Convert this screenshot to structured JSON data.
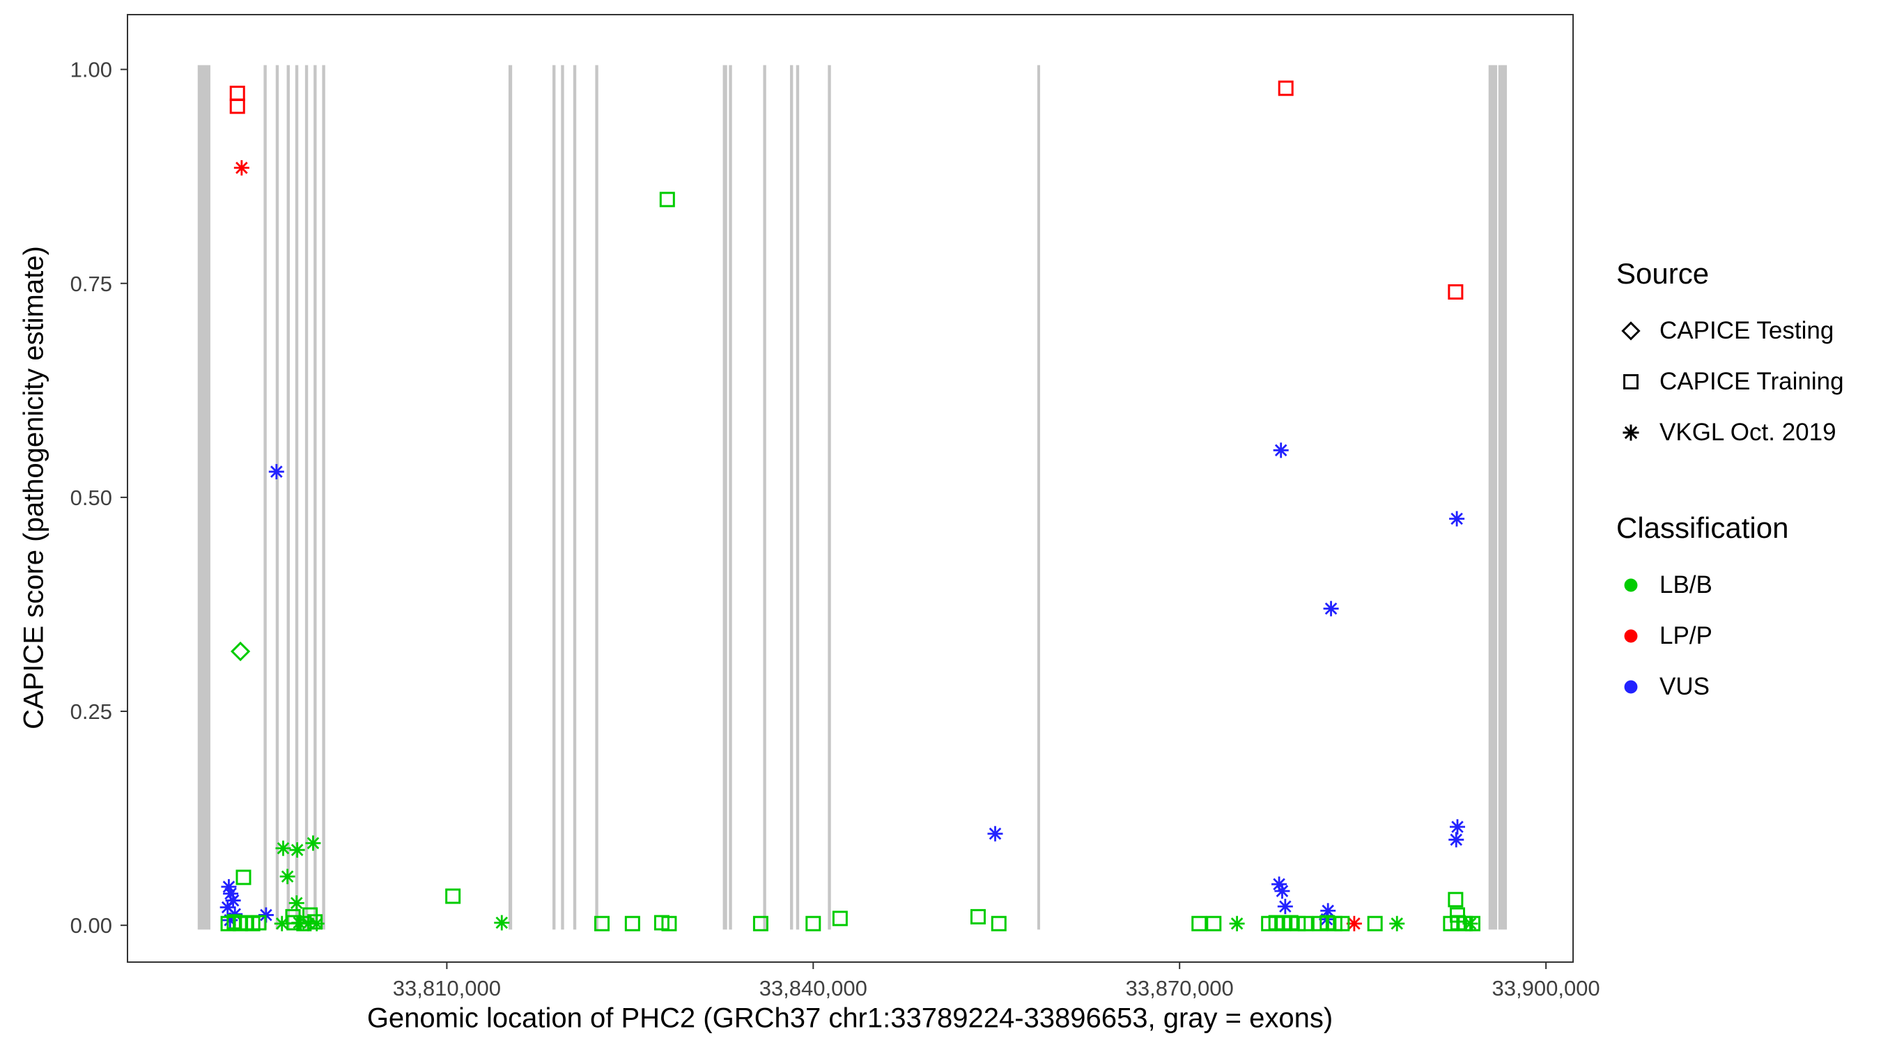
{
  "chart_data": {
    "type": "scatter",
    "title": "",
    "xlabel": "Genomic location of PHC2 (GRCh37 chr1:33789224-33896653, gray = exons)",
    "ylabel": "CAPICE score (pathogenicity estimate)",
    "x_domain": [
      33783852,
      33902219
    ],
    "y_domain": [
      -0.043,
      1.064
    ],
    "x_ticks": [
      {
        "value": 33810000,
        "label": "33,810,000"
      },
      {
        "value": 33840000,
        "label": "33,840,000"
      },
      {
        "value": 33870000,
        "label": "33,870,000"
      },
      {
        "value": 33900000,
        "label": "33,900,000"
      }
    ],
    "y_ticks": [
      {
        "value": 0.0,
        "label": "0.00"
      },
      {
        "value": 0.25,
        "label": "0.25"
      },
      {
        "value": 0.5,
        "label": "0.50"
      },
      {
        "value": 0.75,
        "label": "0.75"
      },
      {
        "value": 1.0,
        "label": "1.00"
      }
    ],
    "exon_color": "#c6c6c6",
    "exons": [
      [
        33789600,
        33790640
      ],
      [
        33795000,
        33795250
      ],
      [
        33795990,
        33796240
      ],
      [
        33796890,
        33797140
      ],
      [
        33797590,
        33797840
      ],
      [
        33798390,
        33798640
      ],
      [
        33799090,
        33799340
      ],
      [
        33799790,
        33800040
      ],
      [
        33815050,
        33815350
      ],
      [
        33818650,
        33818900
      ],
      [
        33819350,
        33819600
      ],
      [
        33820350,
        33820600
      ],
      [
        33822150,
        33822400
      ],
      [
        33832600,
        33832950
      ],
      [
        33833100,
        33833350
      ],
      [
        33835900,
        33836150
      ],
      [
        33838100,
        33838350
      ],
      [
        33838600,
        33838850
      ],
      [
        33841200,
        33841450
      ],
      [
        33858350,
        33858500
      ],
      [
        33895300,
        33896000
      ],
      [
        33896100,
        33896800
      ]
    ],
    "classification_colors": {
      "LB/B": "#00cc00",
      "LP/P": "#ff0000",
      "VUS": "#2222ff"
    },
    "source_labels": {
      "testing": "CAPICE Testing",
      "training": "CAPICE Training",
      "vkgl": "VKGL Oct. 2019"
    },
    "source_shapes": {
      "testing": "diamond",
      "training": "square",
      "vkgl": "asterisk"
    },
    "point_format": [
      "genomic_position",
      "capice_score",
      "source",
      "classification"
    ],
    "points": [
      [
        33792850,
        0.972,
        "training",
        "LP/P"
      ],
      [
        33792850,
        0.957,
        "training",
        "LP/P"
      ],
      [
        33878700,
        0.978,
        "training",
        "LP/P"
      ],
      [
        33892600,
        0.74,
        "training",
        "LP/P"
      ],
      [
        33793200,
        0.885,
        "vkgl",
        "LP/P"
      ],
      [
        33884300,
        0.002,
        "vkgl",
        "LP/P"
      ],
      [
        33793100,
        0.32,
        "testing",
        "LB/B"
      ],
      [
        33796050,
        0.53,
        "vkgl",
        "VUS"
      ],
      [
        33854900,
        0.107,
        "vkgl",
        "VUS"
      ],
      [
        33878300,
        0.555,
        "vkgl",
        "VUS"
      ],
      [
        33882400,
        0.37,
        "vkgl",
        "VUS"
      ],
      [
        33892700,
        0.475,
        "vkgl",
        "VUS"
      ],
      [
        33892750,
        0.115,
        "vkgl",
        "VUS"
      ],
      [
        33892650,
        0.1,
        "vkgl",
        "VUS"
      ],
      [
        33792150,
        0.045,
        "vkgl",
        "VUS"
      ],
      [
        33792300,
        0.037,
        "vkgl",
        "VUS"
      ],
      [
        33792500,
        0.029,
        "vkgl",
        "VUS"
      ],
      [
        33792050,
        0.021,
        "vkgl",
        "VUS"
      ],
      [
        33792650,
        0.013,
        "vkgl",
        "VUS"
      ],
      [
        33792250,
        0.006,
        "vkgl",
        "VUS"
      ],
      [
        33795200,
        0.012,
        "vkgl",
        "VUS"
      ],
      [
        33878150,
        0.048,
        "vkgl",
        "VUS"
      ],
      [
        33878400,
        0.04,
        "vkgl",
        "VUS"
      ],
      [
        33878650,
        0.022,
        "vkgl",
        "VUS"
      ],
      [
        33882150,
        0.017,
        "vkgl",
        "VUS"
      ],
      [
        33882050,
        0.007,
        "vkgl",
        "VUS"
      ],
      [
        33796600,
        0.09,
        "vkgl",
        "LB/B"
      ],
      [
        33797750,
        0.088,
        "vkgl",
        "LB/B"
      ],
      [
        33799050,
        0.096,
        "vkgl",
        "LB/B"
      ],
      [
        33796950,
        0.057,
        "vkgl",
        "LB/B"
      ],
      [
        33797700,
        0.026,
        "vkgl",
        "LB/B"
      ],
      [
        33796500,
        0.002,
        "vkgl",
        "LB/B"
      ],
      [
        33797900,
        0.003,
        "vkgl",
        "LB/B"
      ],
      [
        33798650,
        0.002,
        "vkgl",
        "LB/B"
      ],
      [
        33799350,
        0.002,
        "vkgl",
        "LB/B"
      ],
      [
        33814500,
        0.003,
        "vkgl",
        "LB/B"
      ],
      [
        33874700,
        0.002,
        "vkgl",
        "LB/B"
      ],
      [
        33887800,
        0.002,
        "vkgl",
        "LB/B"
      ],
      [
        33893800,
        0.002,
        "vkgl",
        "LB/B"
      ],
      [
        33793350,
        0.056,
        "training",
        "LB/B"
      ],
      [
        33810500,
        0.034,
        "training",
        "LB/B"
      ],
      [
        33828050,
        0.848,
        "training",
        "LB/B"
      ],
      [
        33892600,
        0.03,
        "training",
        "LB/B"
      ],
      [
        33892750,
        0.012,
        "training",
        "LB/B"
      ],
      [
        33792100,
        0.002,
        "training",
        "LB/B"
      ],
      [
        33792600,
        0.004,
        "training",
        "LB/B"
      ],
      [
        33793100,
        0.002,
        "training",
        "LB/B"
      ],
      [
        33793600,
        0.003,
        "training",
        "LB/B"
      ],
      [
        33794100,
        0.002,
        "training",
        "LB/B"
      ],
      [
        33794600,
        0.003,
        "training",
        "LB/B"
      ],
      [
        33797400,
        0.01,
        "training",
        "LB/B"
      ],
      [
        33798800,
        0.012,
        "training",
        "LB/B"
      ],
      [
        33797500,
        0.003,
        "training",
        "LB/B"
      ],
      [
        33798300,
        0.002,
        "training",
        "LB/B"
      ],
      [
        33799200,
        0.004,
        "training",
        "LB/B"
      ],
      [
        33822700,
        0.002,
        "training",
        "LB/B"
      ],
      [
        33825200,
        0.002,
        "training",
        "LB/B"
      ],
      [
        33827600,
        0.003,
        "training",
        "LB/B"
      ],
      [
        33828200,
        0.002,
        "training",
        "LB/B"
      ],
      [
        33835700,
        0.002,
        "training",
        "LB/B"
      ],
      [
        33840000,
        0.002,
        "training",
        "LB/B"
      ],
      [
        33842200,
        0.008,
        "training",
        "LB/B"
      ],
      [
        33853500,
        0.01,
        "training",
        "LB/B"
      ],
      [
        33855200,
        0.002,
        "training",
        "LB/B"
      ],
      [
        33871600,
        0.002,
        "training",
        "LB/B"
      ],
      [
        33872800,
        0.002,
        "training",
        "LB/B"
      ],
      [
        33877300,
        0.002,
        "training",
        "LB/B"
      ],
      [
        33877900,
        0.003,
        "training",
        "LB/B"
      ],
      [
        33878500,
        0.002,
        "training",
        "LB/B"
      ],
      [
        33879100,
        0.003,
        "training",
        "LB/B"
      ],
      [
        33879700,
        0.002,
        "training",
        "LB/B"
      ],
      [
        33880300,
        0.002,
        "training",
        "LB/B"
      ],
      [
        33881500,
        0.002,
        "training",
        "LB/B"
      ],
      [
        33882100,
        0.003,
        "training",
        "LB/B"
      ],
      [
        33882700,
        0.002,
        "training",
        "LB/B"
      ],
      [
        33883300,
        0.002,
        "training",
        "LB/B"
      ],
      [
        33886000,
        0.002,
        "training",
        "LB/B"
      ],
      [
        33892200,
        0.002,
        "training",
        "LB/B"
      ],
      [
        33892800,
        0.003,
        "training",
        "LB/B"
      ],
      [
        33893400,
        0.002,
        "training",
        "LB/B"
      ],
      [
        33894000,
        0.002,
        "training",
        "LB/B"
      ]
    ]
  },
  "legend": {
    "source_title": "Source",
    "source_items": [
      {
        "label": "CAPICE Testing",
        "shape": "diamond"
      },
      {
        "label": "CAPICE Training",
        "shape": "square"
      },
      {
        "label": "VKGL Oct. 2019",
        "shape": "asterisk"
      }
    ],
    "classification_title": "Classification",
    "classification_items": [
      {
        "label": "LB/B",
        "color": "#00cc00"
      },
      {
        "label": "LP/P",
        "color": "#ff0000"
      },
      {
        "label": "VUS",
        "color": "#2222ff"
      }
    ]
  }
}
